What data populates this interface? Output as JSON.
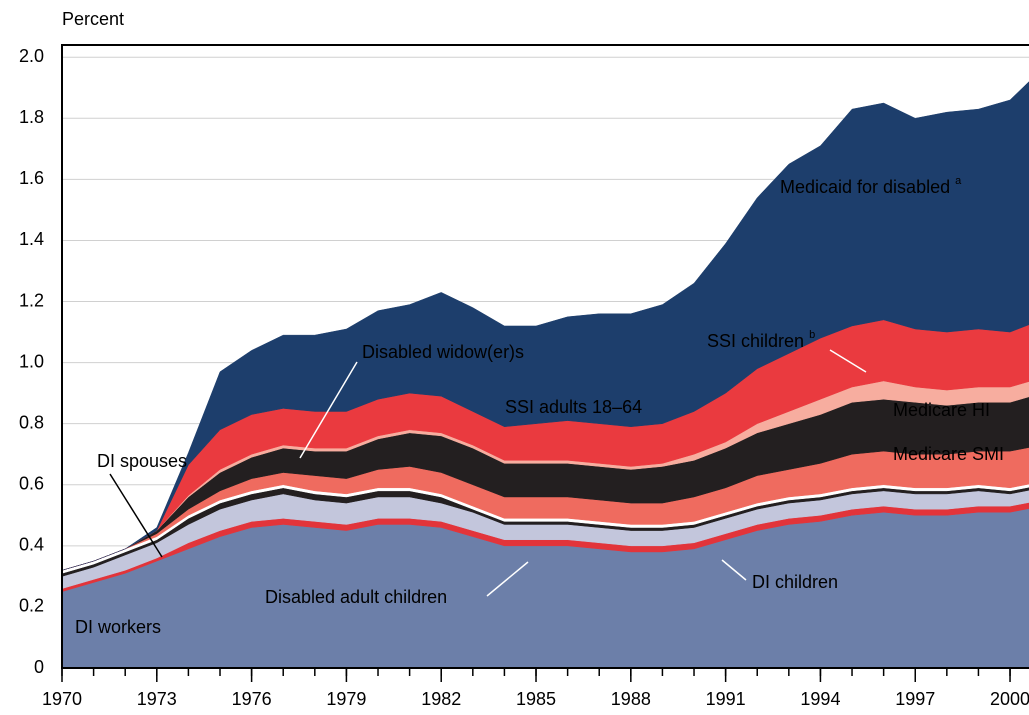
{
  "chart_data": {
    "type": "stacked_area",
    "ylabel": "Percent",
    "x": [
      1970,
      1971,
      1972,
      1973,
      1974,
      1975,
      1976,
      1977,
      1978,
      1979,
      1980,
      1981,
      1982,
      1983,
      1984,
      1985,
      1986,
      1987,
      1988,
      1989,
      1990,
      1991,
      1992,
      1993,
      1994,
      1995,
      1996,
      1997,
      1998,
      1999,
      2000,
      2001
    ],
    "xlim": [
      1970,
      2000.6
    ],
    "xticks": [
      1970,
      1973,
      1976,
      1979,
      1982,
      1985,
      1988,
      1991,
      1994,
      1997,
      2000
    ],
    "ylim": [
      0,
      2.04
    ],
    "yticks": [
      0,
      0.2,
      0.4,
      0.6,
      0.8,
      {
        "value": 1,
        "label": "1.0"
      },
      1.2,
      1.4,
      1.6,
      1.8,
      {
        "value": 2,
        "label": "2.0"
      }
    ],
    "grid": true,
    "series": [
      {
        "name": "DI workers",
        "color": "#6c7fa9",
        "values": [
          0.25,
          0.28,
          0.31,
          0.35,
          0.39,
          0.43,
          0.46,
          0.47,
          0.46,
          0.45,
          0.47,
          0.47,
          0.46,
          0.43,
          0.4,
          0.4,
          0.4,
          0.39,
          0.38,
          0.38,
          0.39,
          0.42,
          0.45,
          0.47,
          0.48,
          0.5,
          0.51,
          0.5,
          0.5,
          0.51,
          0.51,
          0.53
        ]
      },
      {
        "name": "Disabled adult children",
        "color": "#e2343a",
        "values": [
          0.01,
          0.01,
          0.01,
          0.01,
          0.02,
          0.02,
          0.02,
          0.02,
          0.02,
          0.02,
          0.02,
          0.02,
          0.02,
          0.02,
          0.02,
          0.02,
          0.02,
          0.02,
          0.02,
          0.02,
          0.02,
          0.02,
          0.02,
          0.02,
          0.02,
          0.02,
          0.02,
          0.02,
          0.02,
          0.02,
          0.02,
          0.02
        ]
      },
      {
        "name": "DI children",
        "color": "#c3c6dc",
        "values": [
          0.04,
          0.04,
          0.05,
          0.05,
          0.06,
          0.07,
          0.07,
          0.08,
          0.07,
          0.07,
          0.07,
          0.07,
          0.06,
          0.06,
          0.05,
          0.05,
          0.05,
          0.05,
          0.05,
          0.05,
          0.05,
          0.05,
          0.05,
          0.05,
          0.05,
          0.05,
          0.05,
          0.05,
          0.05,
          0.05,
          0.04,
          0.04
        ]
      },
      {
        "name": "DI spouses",
        "color": "#231f20",
        "values": [
          0.01,
          0.01,
          0.01,
          0.01,
          0.02,
          0.02,
          0.02,
          0.02,
          0.02,
          0.02,
          0.02,
          0.02,
          0.02,
          0.01,
          0.01,
          0.01,
          0.01,
          0.01,
          0.01,
          0.01,
          0.01,
          0.01,
          0.01,
          0.01,
          0.01,
          0.01,
          0.01,
          0.01,
          0.01,
          0.01,
          0.01,
          0.01
        ]
      },
      {
        "name": "Disabled widow(er)s",
        "color": "#ffffff",
        "values": [
          0.01,
          0.01,
          0.01,
          0.01,
          0.01,
          0.01,
          0.01,
          0.01,
          0.01,
          0.01,
          0.01,
          0.01,
          0.01,
          0.01,
          0.01,
          0.01,
          0.01,
          0.01,
          0.01,
          0.01,
          0.01,
          0.01,
          0.01,
          0.01,
          0.01,
          0.01,
          0.01,
          0.01,
          0.01,
          0.01,
          0.01,
          0.01
        ]
      },
      {
        "name": "Medicare SMI",
        "color": "#ef6b5f",
        "values": [
          0,
          0,
          0,
          0.01,
          0.02,
          0.03,
          0.04,
          0.04,
          0.05,
          0.05,
          0.06,
          0.07,
          0.07,
          0.07,
          0.07,
          0.07,
          0.07,
          0.07,
          0.07,
          0.07,
          0.08,
          0.08,
          0.09,
          0.09,
          0.1,
          0.11,
          0.11,
          0.11,
          0.11,
          0.11,
          0.12,
          0.12
        ]
      },
      {
        "name": "Medicare HI",
        "color": "#231f20",
        "values": [
          0,
          0,
          0,
          0.01,
          0.04,
          0.06,
          0.07,
          0.08,
          0.08,
          0.09,
          0.1,
          0.11,
          0.12,
          0.12,
          0.11,
          0.11,
          0.11,
          0.11,
          0.11,
          0.12,
          0.12,
          0.13,
          0.14,
          0.15,
          0.16,
          0.17,
          0.17,
          0.17,
          0.16,
          0.16,
          0.16,
          0.17
        ]
      },
      {
        "name": "SSI children",
        "footnote": "b",
        "color": "#f7ad9f",
        "values": [
          0,
          0,
          0,
          0,
          0.005,
          0.01,
          0.01,
          0.01,
          0.01,
          0.01,
          0.01,
          0.01,
          0.01,
          0.01,
          0.01,
          0.01,
          0.01,
          0.01,
          0.01,
          0.01,
          0.02,
          0.02,
          0.03,
          0.04,
          0.05,
          0.05,
          0.06,
          0.05,
          0.05,
          0.05,
          0.05,
          0.05
        ]
      },
      {
        "name": "SSI adults 18–64",
        "color": "#ea3a3f",
        "values": [
          0,
          0,
          0,
          0,
          0.1,
          0.13,
          0.13,
          0.12,
          0.12,
          0.12,
          0.12,
          0.12,
          0.12,
          0.11,
          0.11,
          0.12,
          0.13,
          0.13,
          0.13,
          0.13,
          0.14,
          0.16,
          0.18,
          0.19,
          0.2,
          0.2,
          0.2,
          0.19,
          0.19,
          0.19,
          0.18,
          0.19
        ]
      },
      {
        "name": "Medicaid for disabled",
        "footnote": "a",
        "color": "#1d3e6c",
        "values": [
          0,
          0,
          0,
          0.01,
          0.04,
          0.19,
          0.21,
          0.24,
          0.25,
          0.27,
          0.29,
          0.29,
          0.34,
          0.34,
          0.33,
          0.32,
          0.34,
          0.36,
          0.37,
          0.39,
          0.42,
          0.49,
          0.56,
          0.62,
          0.63,
          0.71,
          0.71,
          0.69,
          0.72,
          0.72,
          0.76,
          0.82
        ]
      }
    ]
  }
}
